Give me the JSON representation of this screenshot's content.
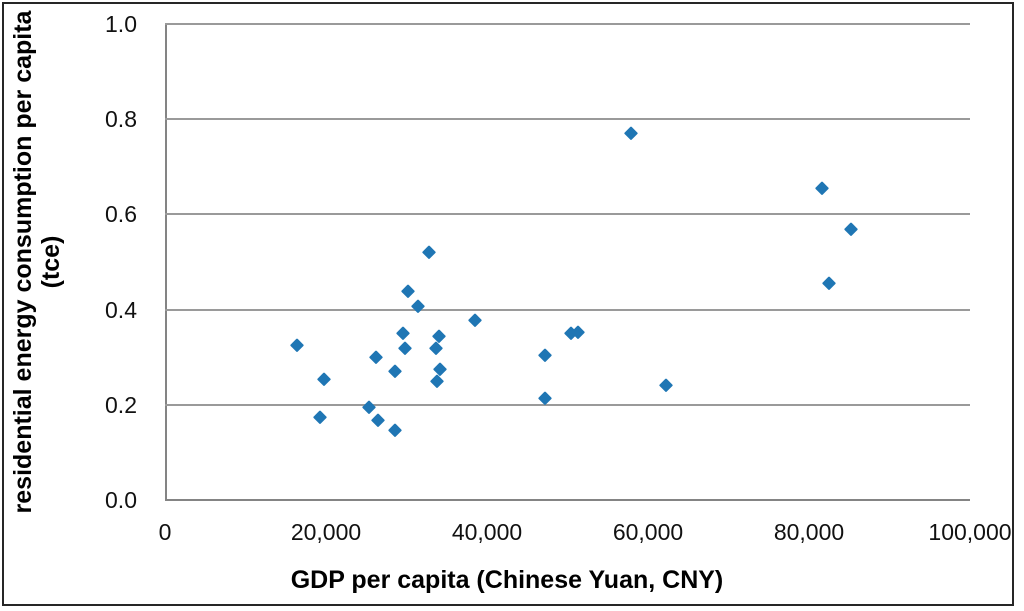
{
  "figure": {
    "x_title": "GDP per capita (Chinese Yuan, CNY)",
    "y_title_line1": "residential energy consumption per capita",
    "y_title_line2": "(tce)"
  },
  "chart_data": {
    "type": "scatter",
    "title": "",
    "xlabel": "GDP per capita (Chinese Yuan, CNY)",
    "ylabel": "residential energy consumption per capita (tce)",
    "xlim": [
      0,
      100000
    ],
    "ylim": [
      0.0,
      1.0
    ],
    "x_ticks": [
      0,
      20000,
      40000,
      60000,
      80000,
      100000
    ],
    "x_tick_labels": [
      "0",
      "20,000",
      "40,000",
      "60,000",
      "80,000",
      "100,000"
    ],
    "y_ticks": [
      0.0,
      0.2,
      0.4,
      0.6,
      0.8,
      1.0
    ],
    "y_tick_labels": [
      "0.0",
      "0.2",
      "0.4",
      "0.6",
      "0.8",
      "1.0"
    ],
    "grid": "horizontal",
    "legend": "none",
    "marker": "diamond",
    "marker_color": "#1f76b4",
    "gridline_color": "#9a9a9a",
    "points": [
      {
        "x": 16400,
        "y": 0.325
      },
      {
        "x": 19300,
        "y": 0.175
      },
      {
        "x": 19800,
        "y": 0.255
      },
      {
        "x": 25400,
        "y": 0.195
      },
      {
        "x": 26500,
        "y": 0.168
      },
      {
        "x": 26200,
        "y": 0.3
      },
      {
        "x": 28600,
        "y": 0.27
      },
      {
        "x": 28600,
        "y": 0.148
      },
      {
        "x": 29600,
        "y": 0.35
      },
      {
        "x": 29800,
        "y": 0.32
      },
      {
        "x": 30200,
        "y": 0.44
      },
      {
        "x": 31400,
        "y": 0.408
      },
      {
        "x": 32800,
        "y": 0.52
      },
      {
        "x": 33700,
        "y": 0.32
      },
      {
        "x": 34000,
        "y": 0.345
      },
      {
        "x": 33800,
        "y": 0.25
      },
      {
        "x": 34200,
        "y": 0.275
      },
      {
        "x": 38500,
        "y": 0.378
      },
      {
        "x": 47200,
        "y": 0.305
      },
      {
        "x": 47200,
        "y": 0.215
      },
      {
        "x": 50400,
        "y": 0.35
      },
      {
        "x": 51300,
        "y": 0.353
      },
      {
        "x": 57900,
        "y": 0.77
      },
      {
        "x": 62200,
        "y": 0.242
      },
      {
        "x": 81600,
        "y": 0.655
      },
      {
        "x": 82500,
        "y": 0.455
      },
      {
        "x": 85200,
        "y": 0.57
      }
    ]
  }
}
